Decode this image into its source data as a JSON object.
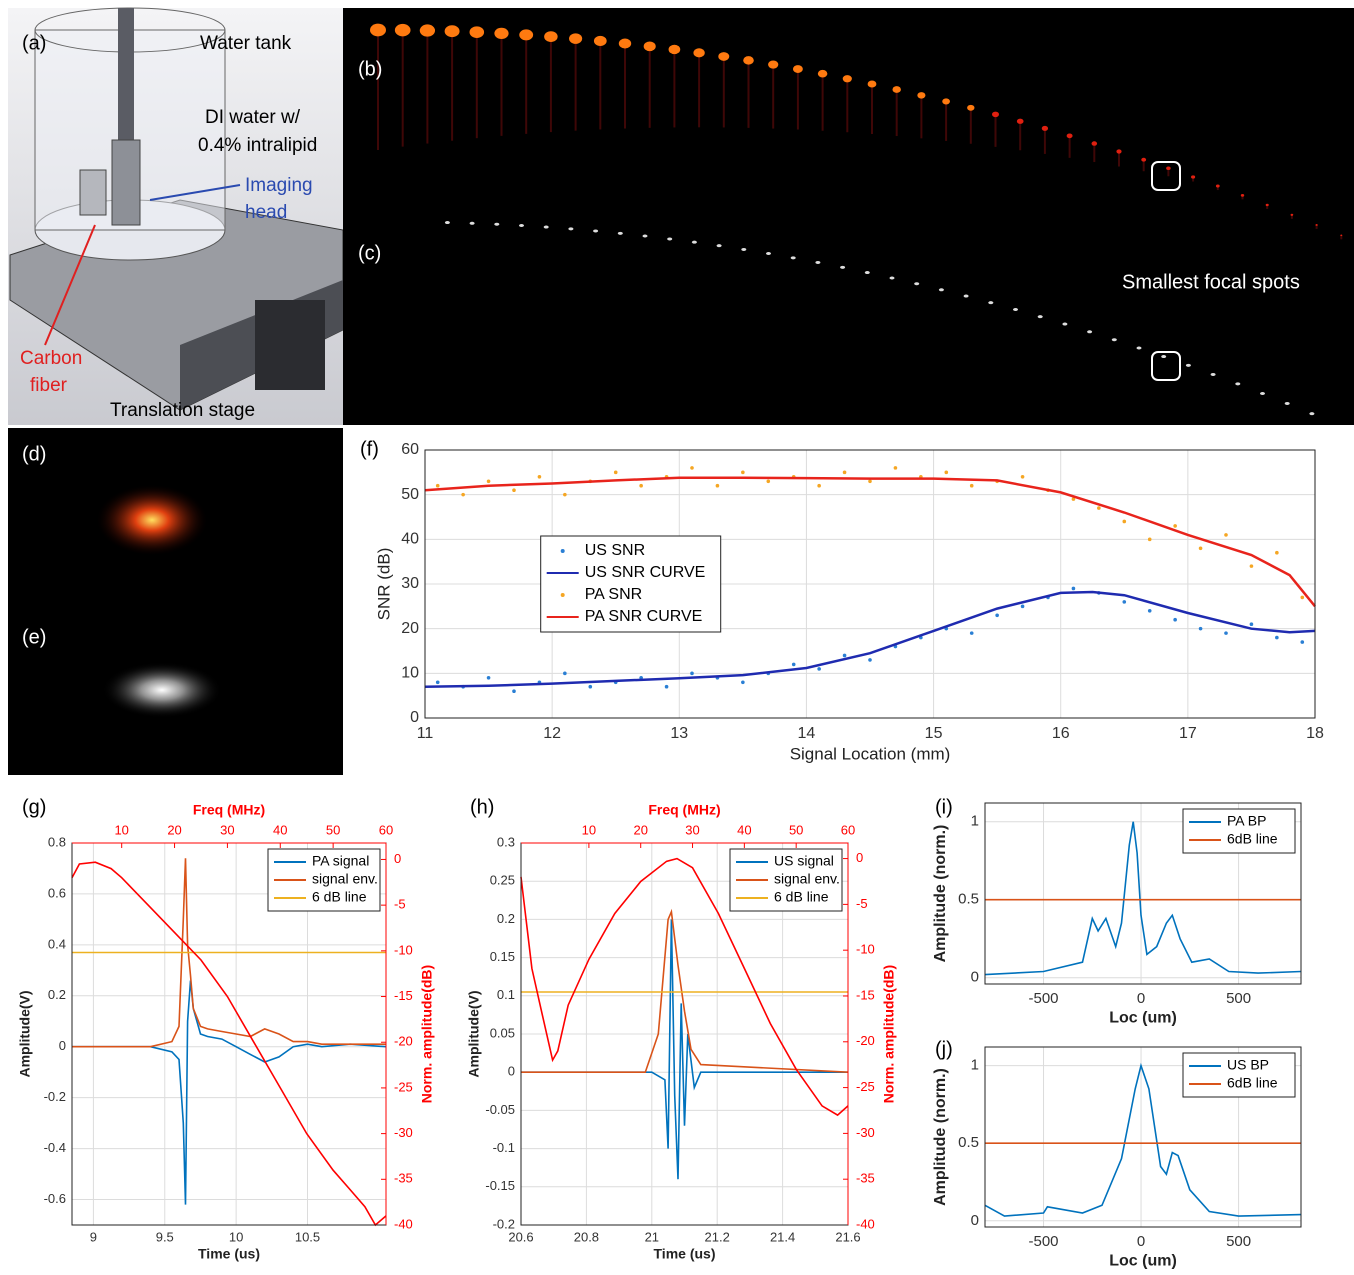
{
  "images": {
    "a": {
      "label": "(a)",
      "water_tank": "Water tank",
      "di_water_1": "DI water w/",
      "di_water_2": "0.4% intralipid",
      "imaging_1": "Imaging",
      "imaging_2": "head",
      "carbon_1": "Carbon",
      "carbon_2": "fiber",
      "stage": "Translation stage"
    },
    "b": {
      "label": "(b)"
    },
    "c": {
      "label": "(c)",
      "note": "Smallest focal spots"
    },
    "d": {
      "label": "(d)"
    },
    "e": {
      "label": "(e)"
    }
  },
  "chart_data": [
    {
      "type": "scatter",
      "label": "(f)",
      "xlabel": "Signal Location (mm)",
      "ylabel": "SNR (dB)",
      "xlim": [
        11,
        18
      ],
      "ylim": [
        0,
        60
      ],
      "xticks": [
        11,
        12,
        13,
        14,
        15,
        16,
        17,
        18
      ],
      "yticks": [
        0,
        10,
        20,
        30,
        40,
        50,
        60
      ],
      "grid": true,
      "legend": "center left",
      "series": [
        {
          "name": "US SNR",
          "kind": "scatter",
          "color": "#2a7fd4",
          "x": [
            11.1,
            11.3,
            11.5,
            11.7,
            11.9,
            12.1,
            12.3,
            12.5,
            12.7,
            12.9,
            13.1,
            13.3,
            13.5,
            13.7,
            13.9,
            14.1,
            14.3,
            14.5,
            14.7,
            14.9,
            15.1,
            15.3,
            15.5,
            15.7,
            15.9,
            16.1,
            16.3,
            16.5,
            16.7,
            16.9,
            17.1,
            17.3,
            17.5,
            17.7,
            17.9
          ],
          "values": [
            8,
            7,
            9,
            6,
            8,
            10,
            7,
            8,
            9,
            7,
            10,
            9,
            8,
            10,
            12,
            11,
            14,
            13,
            16,
            18,
            20,
            19,
            23,
            25,
            27,
            29,
            28,
            26,
            24,
            22,
            20,
            19,
            21,
            18,
            17
          ]
        },
        {
          "name": "US SNR CURVE",
          "kind": "line",
          "color": "#1f2bb0",
          "x": [
            11,
            11.5,
            12,
            12.5,
            13,
            13.5,
            14,
            14.5,
            15,
            15.5,
            16,
            16.25,
            16.5,
            17,
            17.5,
            17.8,
            18
          ],
          "values": [
            7,
            7.2,
            7.7,
            8.3,
            8.9,
            9.6,
            11.2,
            14.5,
            19.5,
            24.5,
            28,
            28.2,
            27.5,
            23.5,
            20,
            19.2,
            19.5
          ]
        },
        {
          "name": "PA SNR",
          "kind": "scatter",
          "color": "#f5a623",
          "x": [
            11.1,
            11.3,
            11.5,
            11.7,
            11.9,
            12.1,
            12.3,
            12.5,
            12.7,
            12.9,
            13.1,
            13.3,
            13.5,
            13.7,
            13.9,
            14.1,
            14.3,
            14.5,
            14.7,
            14.9,
            15.1,
            15.3,
            15.5,
            15.7,
            15.9,
            16.1,
            16.3,
            16.5,
            16.7,
            16.9,
            17.1,
            17.3,
            17.5,
            17.7,
            17.9
          ],
          "values": [
            52,
            50,
            53,
            51,
            54,
            50,
            53,
            55,
            52,
            54,
            56,
            52,
            55,
            53,
            54,
            52,
            55,
            53,
            56,
            54,
            55,
            52,
            53,
            54,
            51,
            49,
            47,
            44,
            40,
            43,
            38,
            41,
            34,
            37,
            27
          ]
        },
        {
          "name": "PA SNR CURVE",
          "kind": "line",
          "color": "#e8241c",
          "x": [
            11,
            11.5,
            12,
            12.5,
            13,
            13.5,
            14,
            14.5,
            15,
            15.5,
            16,
            16.5,
            17,
            17.5,
            17.8,
            18
          ],
          "values": [
            51,
            52,
            52.5,
            53.2,
            53.8,
            53.8,
            53.7,
            53.6,
            53.6,
            53.2,
            50.5,
            46,
            41,
            36.5,
            32,
            25
          ]
        }
      ]
    },
    {
      "type": "line",
      "label": "(g)",
      "xlabel": "Time (us)",
      "ylabel": "Amplitude(V)",
      "x2label": "Freq (MHz)",
      "y2label": "Norm. amplitude(dB)",
      "xlim": [
        8.85,
        11.05
      ],
      "xticks": [
        9,
        9.5,
        10,
        10.5
      ],
      "ylim": [
        -0.7,
        0.8
      ],
      "yticks": [
        -0.6,
        -0.4,
        -0.2,
        0,
        0.2,
        0.4,
        0.6,
        0.8
      ],
      "x2lim": [
        0.6,
        60
      ],
      "x2ticks": [
        10,
        20,
        30,
        40,
        50,
        60
      ],
      "y2lim": [
        -40,
        1.8
      ],
      "y2ticks": [
        -40,
        -35,
        -30,
        -25,
        -20,
        -15,
        -10,
        -5,
        0
      ],
      "grid": true,
      "legend": "upper right",
      "series": [
        {
          "name": "PA signal",
          "kind": "line",
          "color": "#0072bd",
          "x": [
            8.85,
            9.4,
            9.55,
            9.6,
            9.63,
            9.645,
            9.66,
            9.68,
            9.7,
            9.75,
            9.8,
            9.9,
            10,
            10.1,
            10.2,
            10.3,
            10.4,
            10.5,
            10.6,
            10.8,
            11.05
          ],
          "values": [
            0,
            0,
            -0.02,
            -0.05,
            -0.3,
            -0.62,
            0.1,
            0.26,
            0.15,
            0.05,
            0.04,
            0.03,
            0,
            -0.03,
            -0.06,
            -0.04,
            0,
            0.01,
            0,
            0.01,
            0
          ]
        },
        {
          "name": "signal env.",
          "kind": "line",
          "color": "#d95319",
          "x": [
            8.85,
            9.4,
            9.55,
            9.6,
            9.63,
            9.645,
            9.66,
            9.68,
            9.7,
            9.75,
            9.8,
            9.9,
            10,
            10.1,
            10.2,
            10.3,
            10.4,
            10.5,
            10.6,
            10.8,
            11.05
          ],
          "values": [
            0,
            0,
            0.02,
            0.08,
            0.5,
            0.74,
            0.4,
            0.28,
            0.15,
            0.08,
            0.07,
            0.06,
            0.05,
            0.04,
            0.07,
            0.05,
            0.02,
            0.02,
            0.01,
            0.01,
            0.01
          ]
        },
        {
          "name": "6 dB line",
          "kind": "line",
          "color": "#edb120",
          "x": [
            8.85,
            11.05
          ],
          "values": [
            0.37,
            0.37
          ]
        },
        {
          "kind": "line",
          "axis": "y2",
          "xaxis": "x2",
          "color": "#ff0000",
          "x": [
            0.6,
            2,
            5,
            8,
            10,
            15,
            20,
            25,
            30,
            35,
            40,
            45,
            50,
            53,
            56,
            58,
            60
          ],
          "values": [
            -2,
            -0.5,
            -0.3,
            -1,
            -2,
            -5,
            -8,
            -11,
            -15,
            -20,
            -25,
            -30,
            -34,
            -36,
            -38,
            -40,
            -39
          ]
        }
      ]
    },
    {
      "type": "line",
      "label": "(h)",
      "xlabel": "Time (us)",
      "ylabel": "Amplitude(V)",
      "x2label": "Freq (MHz)",
      "y2label": "Norm. amplitude(dB)",
      "xlim": [
        20.6,
        21.6
      ],
      "xticks": [
        20.6,
        20.8,
        21,
        21.2,
        21.4,
        21.6
      ],
      "ylim": [
        -0.2,
        0.3
      ],
      "yticks": [
        -0.2,
        -0.15,
        -0.1,
        -0.05,
        0,
        0.05,
        0.1,
        0.15,
        0.2,
        0.25,
        0.3
      ],
      "x2lim": [
        -3.1,
        60
      ],
      "x2ticks": [
        10,
        20,
        30,
        40,
        50,
        60
      ],
      "y2lim": [
        -40,
        1.7
      ],
      "y2ticks": [
        -40,
        -35,
        -30,
        -25,
        -20,
        -15,
        -10,
        -5,
        0
      ],
      "grid": true,
      "legend": "upper right",
      "series": [
        {
          "name": "US signal",
          "kind": "line",
          "color": "#0072bd",
          "x": [
            20.6,
            21,
            21.04,
            21.05,
            21.06,
            21.07,
            21.08,
            21.09,
            21.1,
            21.11,
            21.13,
            21.15,
            21.6
          ],
          "values": [
            0,
            0,
            -0.01,
            -0.1,
            0.2,
            -0.03,
            -0.14,
            0.09,
            -0.07,
            0.05,
            -0.02,
            0,
            0
          ]
        },
        {
          "name": "signal env.",
          "kind": "line",
          "color": "#d95319",
          "x": [
            20.6,
            20.98,
            21.02,
            21.05,
            21.06,
            21.08,
            21.1,
            21.12,
            21.15,
            21.6
          ],
          "values": [
            0,
            0,
            0.05,
            0.2,
            0.21,
            0.14,
            0.08,
            0.03,
            0.01,
            0
          ]
        },
        {
          "name": "6 dB line",
          "kind": "line",
          "color": "#edb120",
          "x": [
            20.6,
            21.6
          ],
          "values": [
            0.105,
            0.105
          ]
        },
        {
          "kind": "line",
          "axis": "y2",
          "xaxis": "x2",
          "color": "#ff0000",
          "x": [
            -3.1,
            -1,
            1,
            3,
            4,
            6,
            10,
            15,
            20,
            25,
            27,
            30,
            35,
            40,
            45,
            50,
            55,
            58,
            60
          ],
          "values": [
            -2,
            -12,
            -17,
            -22,
            -21,
            -16,
            -11,
            -6,
            -2.5,
            -0.3,
            0,
            -1,
            -6,
            -12,
            -18,
            -23,
            -27,
            -28,
            -27
          ]
        }
      ]
    },
    {
      "type": "line",
      "label": "(i)",
      "xlabel": "Loc (um)",
      "ylabel": "Amplitude (norm.)",
      "xlim": [
        -800,
        820
      ],
      "xticks": [
        -500,
        0,
        500
      ],
      "ylim": [
        -0.04,
        1.12
      ],
      "yticks": [
        0,
        0.5,
        1
      ],
      "grid": true,
      "legend": "upper right",
      "series": [
        {
          "name": "PA BP",
          "kind": "line",
          "color": "#0072bd",
          "x": [
            -800,
            -500,
            -300,
            -250,
            -220,
            -180,
            -130,
            -100,
            -60,
            -40,
            -20,
            0,
            30,
            80,
            130,
            160,
            200,
            260,
            350,
            450,
            600,
            820
          ],
          "values": [
            0.02,
            0.04,
            0.1,
            0.38,
            0.3,
            0.38,
            0.2,
            0.35,
            0.85,
            1,
            0.8,
            0.4,
            0.15,
            0.2,
            0.35,
            0.4,
            0.25,
            0.1,
            0.12,
            0.04,
            0.03,
            0.04
          ]
        },
        {
          "name": "6dB line",
          "kind": "line",
          "color": "#d95319",
          "x": [
            -800,
            820
          ],
          "values": [
            0.5,
            0.5
          ]
        }
      ]
    },
    {
      "type": "line",
      "label": "(j)",
      "xlabel": "Loc (um)",
      "ylabel": "Amplitude (norm.)",
      "xlim": [
        -800,
        820
      ],
      "xticks": [
        -500,
        0,
        500
      ],
      "ylim": [
        -0.04,
        1.12
      ],
      "yticks": [
        0,
        0.5,
        1
      ],
      "grid": true,
      "legend": "upper right",
      "series": [
        {
          "name": "US BP",
          "kind": "line",
          "color": "#0072bd",
          "x": [
            -800,
            -700,
            -500,
            -480,
            -300,
            -200,
            -100,
            -30,
            0,
            40,
            100,
            130,
            160,
            190,
            250,
            350,
            500,
            820
          ],
          "values": [
            0.1,
            0.03,
            0.05,
            0.09,
            0.05,
            0.1,
            0.4,
            0.85,
            1,
            0.85,
            0.35,
            0.3,
            0.44,
            0.42,
            0.2,
            0.06,
            0.03,
            0.04
          ]
        },
        {
          "name": "6dB line",
          "kind": "line",
          "color": "#d95319",
          "x": [
            -800,
            820
          ],
          "values": [
            0.5,
            0.5
          ]
        }
      ]
    }
  ]
}
